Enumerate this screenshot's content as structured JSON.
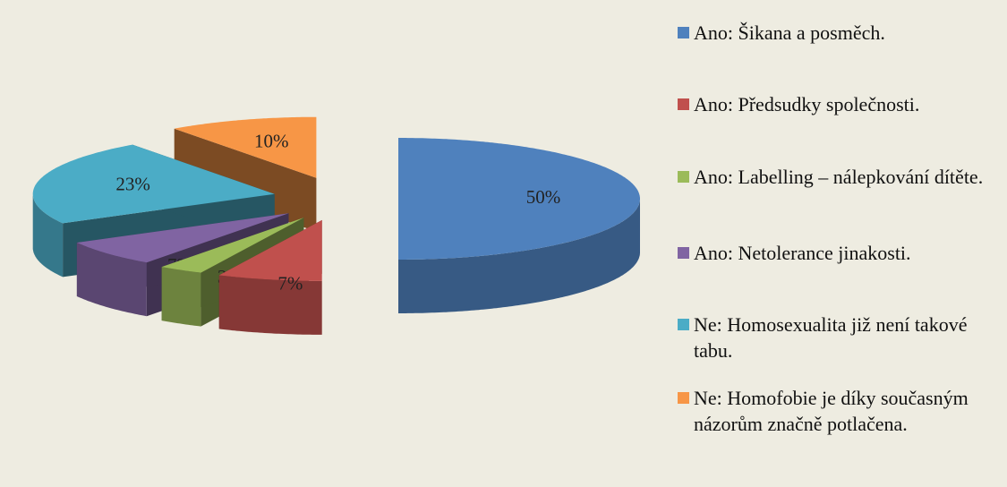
{
  "chart_data": {
    "type": "pie3d",
    "categories": [
      "Ano: Šikana a posměch.",
      "Ano: Předsudky společnosti.",
      "Ano: Labelling – nálepkování dítěte.",
      "Ano: Netolerance jinakosti.",
      "Ne: Homosexualita již není takové tabu.",
      "Ne: Homofobie je díky současným názorům značně potlačena."
    ],
    "values": [
      50,
      7,
      3,
      7,
      23,
      10
    ],
    "value_labels": [
      "50%",
      "7%",
      "3%",
      "7%",
      "23%",
      "10%"
    ],
    "colors": [
      "#4f81bd",
      "#c0504d",
      "#9bbb59",
      "#8064a2",
      "#4bacc6",
      "#f79646"
    ],
    "legend": "right"
  }
}
